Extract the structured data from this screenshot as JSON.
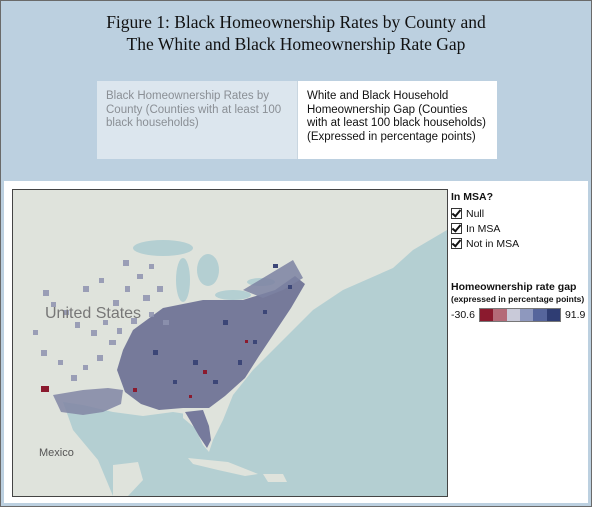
{
  "figure": {
    "title_line1": "Figure 1: Black Homeownership Rates by County and",
    "title_line2": "The White and Black Homeownership Rate Gap"
  },
  "tabs": [
    {
      "label": "Black Homeownership Rates by County (Counties with at least 100 black households)",
      "active": false
    },
    {
      "label": "White and Black Household Homeownership Gap (Counties with at least 100 black households) (Expressed in percentage points)",
      "active": true
    }
  ],
  "map": {
    "labels": {
      "country_us": "United States",
      "country_mexico": "Mexico"
    }
  },
  "filter": {
    "title": "In MSA?",
    "options": [
      {
        "label": "Null",
        "checked": true
      },
      {
        "label": "In MSA",
        "checked": true
      },
      {
        "label": "Not in MSA",
        "checked": true
      }
    ]
  },
  "legend": {
    "title": "Homeownership rate gap",
    "subtitle": "(expressed in percentage points)",
    "min": "-30.6",
    "max": "91.9",
    "colors": [
      "#8b1a2e",
      "#b46a78",
      "#c9cad9",
      "#8e98be",
      "#56659c",
      "#2f3d73"
    ]
  }
}
